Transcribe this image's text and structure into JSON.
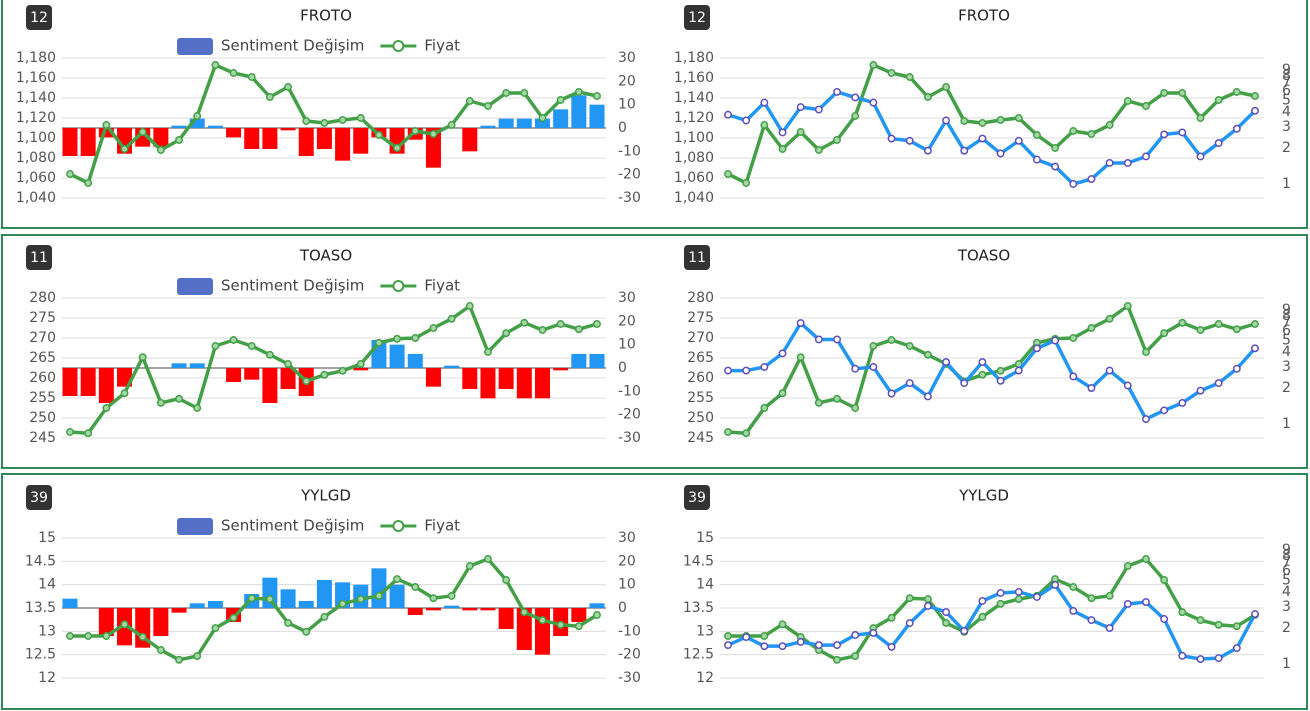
{
  "chart_data": [
    {
      "type": "bar-line",
      "badge": 12,
      "title": "FROTO",
      "legend": "top",
      "grid": true,
      "ylim": [
        1040,
        1180
      ],
      "yticks": [
        {
          "value": 1040,
          "label": "1,040"
        },
        {
          "value": 1060,
          "label": "1,060"
        },
        {
          "value": 1080,
          "label": "1,080"
        },
        {
          "value": 1100,
          "label": "1,100"
        },
        {
          "value": 1120,
          "label": "1,120"
        },
        {
          "value": 1140,
          "label": "1,140"
        },
        {
          "value": 1160,
          "label": "1,160"
        },
        {
          "value": 1180,
          "label": "1,180"
        }
      ],
      "y2lim": [
        -30,
        30
      ],
      "y2ticks": [
        30,
        20,
        10,
        0,
        -10,
        -20,
        -30
      ],
      "series": [
        {
          "name": "Sentiment Değişim",
          "type": "bar",
          "axis": "y2",
          "color": "#5470c6",
          "positive_color": "#2196f3",
          "negative_color": "#ff0000",
          "values": [
            -12,
            -12,
            -4,
            -11,
            -8,
            -8,
            1,
            4,
            1,
            -4,
            -9,
            -9,
            -1,
            -12,
            -9,
            -14,
            -11,
            -4,
            -11,
            -5,
            -17,
            0,
            -10,
            1,
            4,
            4,
            4,
            8,
            14,
            10
          ]
        },
        {
          "name": "Fiyat",
          "type": "line",
          "color": "#43a047",
          "marker_color": "#a5d6a7",
          "values": [
            1064,
            1055,
            1113,
            1089,
            1106,
            1088,
            1098,
            1122,
            1173,
            1165,
            1161,
            1141,
            1151,
            1117,
            1115,
            1118,
            1120,
            1103,
            1090,
            1107,
            1104,
            1113,
            1137,
            1132,
            1145,
            1145,
            1120,
            1138,
            1146,
            1142
          ]
        }
      ]
    },
    {
      "type": "line",
      "badge": 12,
      "title": "FROTO",
      "grid": true,
      "ylim": [
        1040,
        1180
      ],
      "yticks": [
        {
          "value": 1040,
          "label": "1,040"
        },
        {
          "value": 1060,
          "label": "1,060"
        },
        {
          "value": 1080,
          "label": "1,080"
        },
        {
          "value": 1100,
          "label": "1,100"
        },
        {
          "value": 1120,
          "label": "1,120"
        },
        {
          "value": 1140,
          "label": "1,140"
        },
        {
          "value": 1160,
          "label": "1,160"
        },
        {
          "value": 1180,
          "label": "1,180"
        }
      ],
      "y2lim": [
        1,
        9
      ],
      "y2ticks": [
        1,
        2,
        3,
        4,
        5,
        6,
        7,
        8,
        9
      ],
      "y2_log": true,
      "series": [
        {
          "type": "line",
          "color": "#43a047",
          "marker_color": "#a5d6a7",
          "values": [
            1064,
            1055,
            1113,
            1089,
            1106,
            1088,
            1098,
            1122,
            1173,
            1165,
            1161,
            1141,
            1151,
            1117,
            1115,
            1118,
            1120,
            1103,
            1090,
            1107,
            1104,
            1113,
            1137,
            1132,
            1145,
            1145,
            1120,
            1138,
            1146,
            1142
          ]
        },
        {
          "type": "line",
          "axis": "y2",
          "color": "#2196f3",
          "marker_color": "#ffffff",
          "marker_stroke": "#5c4dbb",
          "values": [
            3.8,
            3.4,
            4.8,
            2.7,
            4.4,
            4.2,
            5.9,
            5.3,
            4.8,
            2.4,
            2.3,
            1.9,
            3.4,
            1.9,
            2.4,
            1.8,
            2.3,
            1.6,
            1.4,
            1.0,
            1.1,
            1.5,
            1.5,
            1.7,
            2.6,
            2.7,
            1.7,
            2.2,
            2.9,
            4.1
          ]
        }
      ]
    },
    {
      "type": "bar-line",
      "badge": 11,
      "title": "TOASO",
      "legend": "top",
      "grid": true,
      "ylim": [
        245,
        280
      ],
      "yticks": [
        245,
        250,
        255,
        260,
        265,
        270,
        275,
        280
      ],
      "y2lim": [
        -30,
        30
      ],
      "y2ticks": [
        30,
        20,
        10,
        0,
        -10,
        -20,
        -30
      ],
      "series": [
        {
          "name": "Sentiment Değişim",
          "type": "bar",
          "axis": "y2",
          "color": "#5470c6",
          "positive_color": "#2196f3",
          "negative_color": "#ff0000",
          "values": [
            -12,
            -12,
            -15,
            -8,
            0,
            0,
            2,
            2,
            0,
            -6,
            -5,
            -15,
            -9,
            -12,
            0,
            0,
            -1,
            12,
            10,
            6,
            -8,
            1,
            -9,
            -13,
            -9,
            -13,
            -13,
            -1,
            6,
            6
          ]
        },
        {
          "name": "Fiyat",
          "type": "line",
          "color": "#43a047",
          "marker_color": "#a5d6a7",
          "values": [
            246.5,
            246.2,
            252.5,
            256.2,
            265.2,
            253.8,
            254.8,
            252.5,
            268,
            269.5,
            268,
            265.8,
            263.5,
            259.2,
            260.8,
            261.8,
            263.5,
            268.8,
            269.8,
            270,
            272.5,
            274.8,
            278,
            266.5,
            271.2,
            273.8,
            272,
            273.5,
            272.2,
            273.5
          ]
        }
      ]
    },
    {
      "type": "line",
      "badge": 11,
      "title": "TOASO",
      "grid": true,
      "ylim": [
        245,
        280
      ],
      "yticks": [
        245,
        250,
        255,
        260,
        265,
        270,
        275,
        280
      ],
      "y2lim": [
        1,
        9
      ],
      "y2ticks": [
        1,
        2,
        3,
        4,
        5,
        6,
        7,
        8,
        9
      ],
      "y2_log": true,
      "series": [
        {
          "type": "line",
          "color": "#43a047",
          "marker_color": "#a5d6a7",
          "values": [
            246.5,
            246.2,
            252.5,
            256.2,
            265.2,
            253.8,
            254.8,
            252.5,
            268,
            269.5,
            268,
            265.8,
            263.5,
            259.2,
            260.8,
            261.8,
            263.5,
            268.8,
            269.8,
            270,
            272.5,
            274.8,
            278,
            266.5,
            271.2,
            273.8,
            272,
            273.5,
            272.2,
            273.5
          ]
        },
        {
          "type": "line",
          "axis": "y2",
          "color": "#2196f3",
          "marker_color": "#ffffff",
          "marker_stroke": "#5c4dbb",
          "values": [
            2.8,
            2.8,
            3.0,
            3.9,
            7.0,
            5.1,
            5.1,
            2.9,
            3.0,
            1.8,
            2.2,
            1.7,
            3.3,
            2.2,
            3.3,
            2.3,
            2.8,
            4.3,
            5.0,
            2.5,
            2.0,
            2.8,
            2.1,
            1.1,
            1.3,
            1.5,
            1.9,
            2.2,
            2.9,
            4.3
          ]
        }
      ]
    },
    {
      "type": "bar-line",
      "badge": 39,
      "title": "YYLGD",
      "legend": "top",
      "grid": true,
      "ylim": [
        12,
        15
      ],
      "yticks": [
        12,
        12.5,
        13,
        13.5,
        14,
        14.5,
        15
      ],
      "y2lim": [
        -30,
        30
      ],
      "y2ticks": [
        30,
        20,
        10,
        0,
        -10,
        -20,
        -30
      ],
      "series": [
        {
          "name": "Sentiment Değişim",
          "type": "bar",
          "axis": "y2",
          "color": "#5470c6",
          "positive_color": "#2196f3",
          "negative_color": "#ff0000",
          "values": [
            4,
            0,
            -12,
            -16,
            -17,
            -12,
            -2,
            2,
            3,
            -6,
            6,
            13,
            8,
            3,
            12,
            11,
            10,
            17,
            10,
            -3,
            -1,
            1,
            -1,
            -1,
            -9,
            -18,
            -20,
            -12,
            -6,
            2
          ]
        },
        {
          "name": "Fiyat",
          "type": "line",
          "color": "#43a047",
          "marker_color": "#a5d6a7",
          "values": [
            12.9,
            12.9,
            12.9,
            13.15,
            12.88,
            12.6,
            12.39,
            12.47,
            13.07,
            13.29,
            13.71,
            13.69,
            13.18,
            12.99,
            13.31,
            13.59,
            13.69,
            13.76,
            14.12,
            13.95,
            13.71,
            13.76,
            14.4,
            14.55,
            14.1,
            13.41,
            13.24,
            13.14,
            13.11,
            13.35
          ]
        }
      ]
    },
    {
      "type": "line",
      "badge": 39,
      "title": "YYLGD",
      "grid": true,
      "ylim": [
        12,
        15
      ],
      "yticks": [
        12,
        12.5,
        13,
        13.5,
        14,
        14.5,
        15
      ],
      "y2lim": [
        1,
        9
      ],
      "y2ticks": [
        1,
        2,
        3,
        4,
        5,
        6,
        7,
        8,
        9
      ],
      "y2_log": true,
      "series": [
        {
          "type": "line",
          "color": "#43a047",
          "marker_color": "#a5d6a7",
          "values": [
            12.9,
            12.9,
            12.9,
            13.15,
            12.88,
            12.6,
            12.39,
            12.47,
            13.07,
            13.29,
            13.71,
            13.69,
            13.18,
            12.99,
            13.31,
            13.59,
            13.69,
            13.76,
            14.12,
            13.95,
            13.71,
            13.76,
            14.4,
            14.55,
            14.1,
            13.41,
            13.24,
            13.14,
            13.11,
            13.35
          ]
        },
        {
          "type": "line",
          "axis": "y2",
          "color": "#2196f3",
          "marker_color": "#ffffff",
          "marker_stroke": "#5c4dbb",
          "values": [
            1.44,
            1.68,
            1.41,
            1.41,
            1.53,
            1.44,
            1.44,
            1.75,
            1.82,
            1.39,
            2.2,
            3.06,
            2.72,
            1.89,
            3.37,
            3.93,
            4.01,
            3.64,
            4.59,
            2.78,
            2.33,
            2.0,
            3.18,
            3.3,
            2.38,
            1.17,
            1.1,
            1.12,
            1.36,
            2.62
          ]
        }
      ]
    }
  ]
}
